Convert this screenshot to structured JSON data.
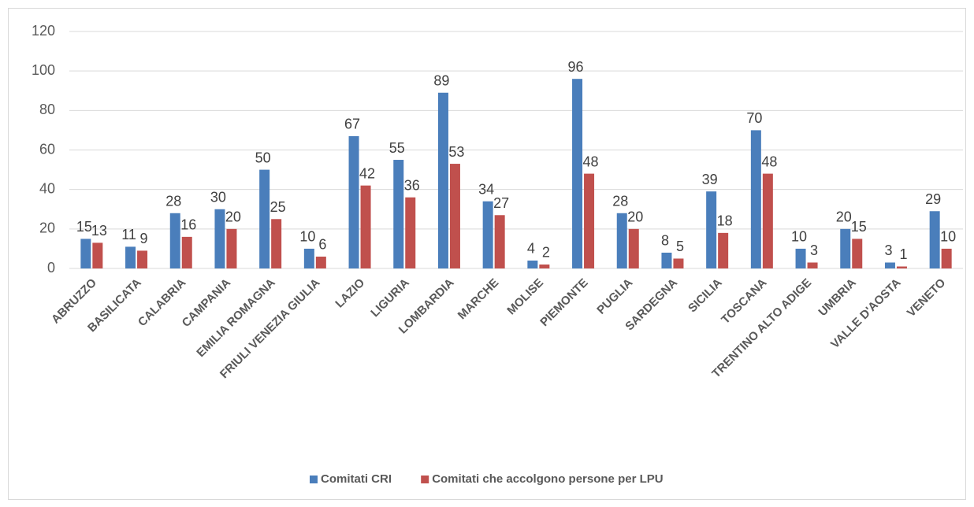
{
  "chart_data": {
    "type": "bar",
    "categories": [
      "ABRUZZO",
      "BASILICATA",
      "CALABRIA",
      "CAMPANIA",
      "EMILIA ROMAGNA",
      "FRIULI VENEZIA GIULIA",
      "LAZIO",
      "LIGURIA",
      "LOMBARDIA",
      "MARCHE",
      "MOLISE",
      "PIEMONTE",
      "PUGLIA",
      "SARDEGNA",
      "SICILIA",
      "TOSCANA",
      "TRENTINO ALTO ADIGE",
      "UMBRIA",
      "VALLE D'AOSTA",
      "VENETO"
    ],
    "series": [
      {
        "name": "Comitati CRI",
        "color": "#4a7ebb",
        "values": [
          15,
          11,
          28,
          30,
          50,
          10,
          67,
          55,
          89,
          34,
          4,
          96,
          28,
          8,
          39,
          70,
          10,
          20,
          3,
          29
        ]
      },
      {
        "name": "Comitati che accolgono persone per LPU",
        "color": "#c0504d",
        "values": [
          13,
          9,
          16,
          20,
          25,
          6,
          42,
          36,
          53,
          27,
          2,
          48,
          20,
          5,
          18,
          48,
          3,
          15,
          1,
          10
        ]
      }
    ],
    "ylim": [
      0,
      120
    ],
    "yticks": [
      0,
      20,
      40,
      60,
      80,
      100,
      120
    ],
    "grid": true,
    "legend": "bottom"
  }
}
